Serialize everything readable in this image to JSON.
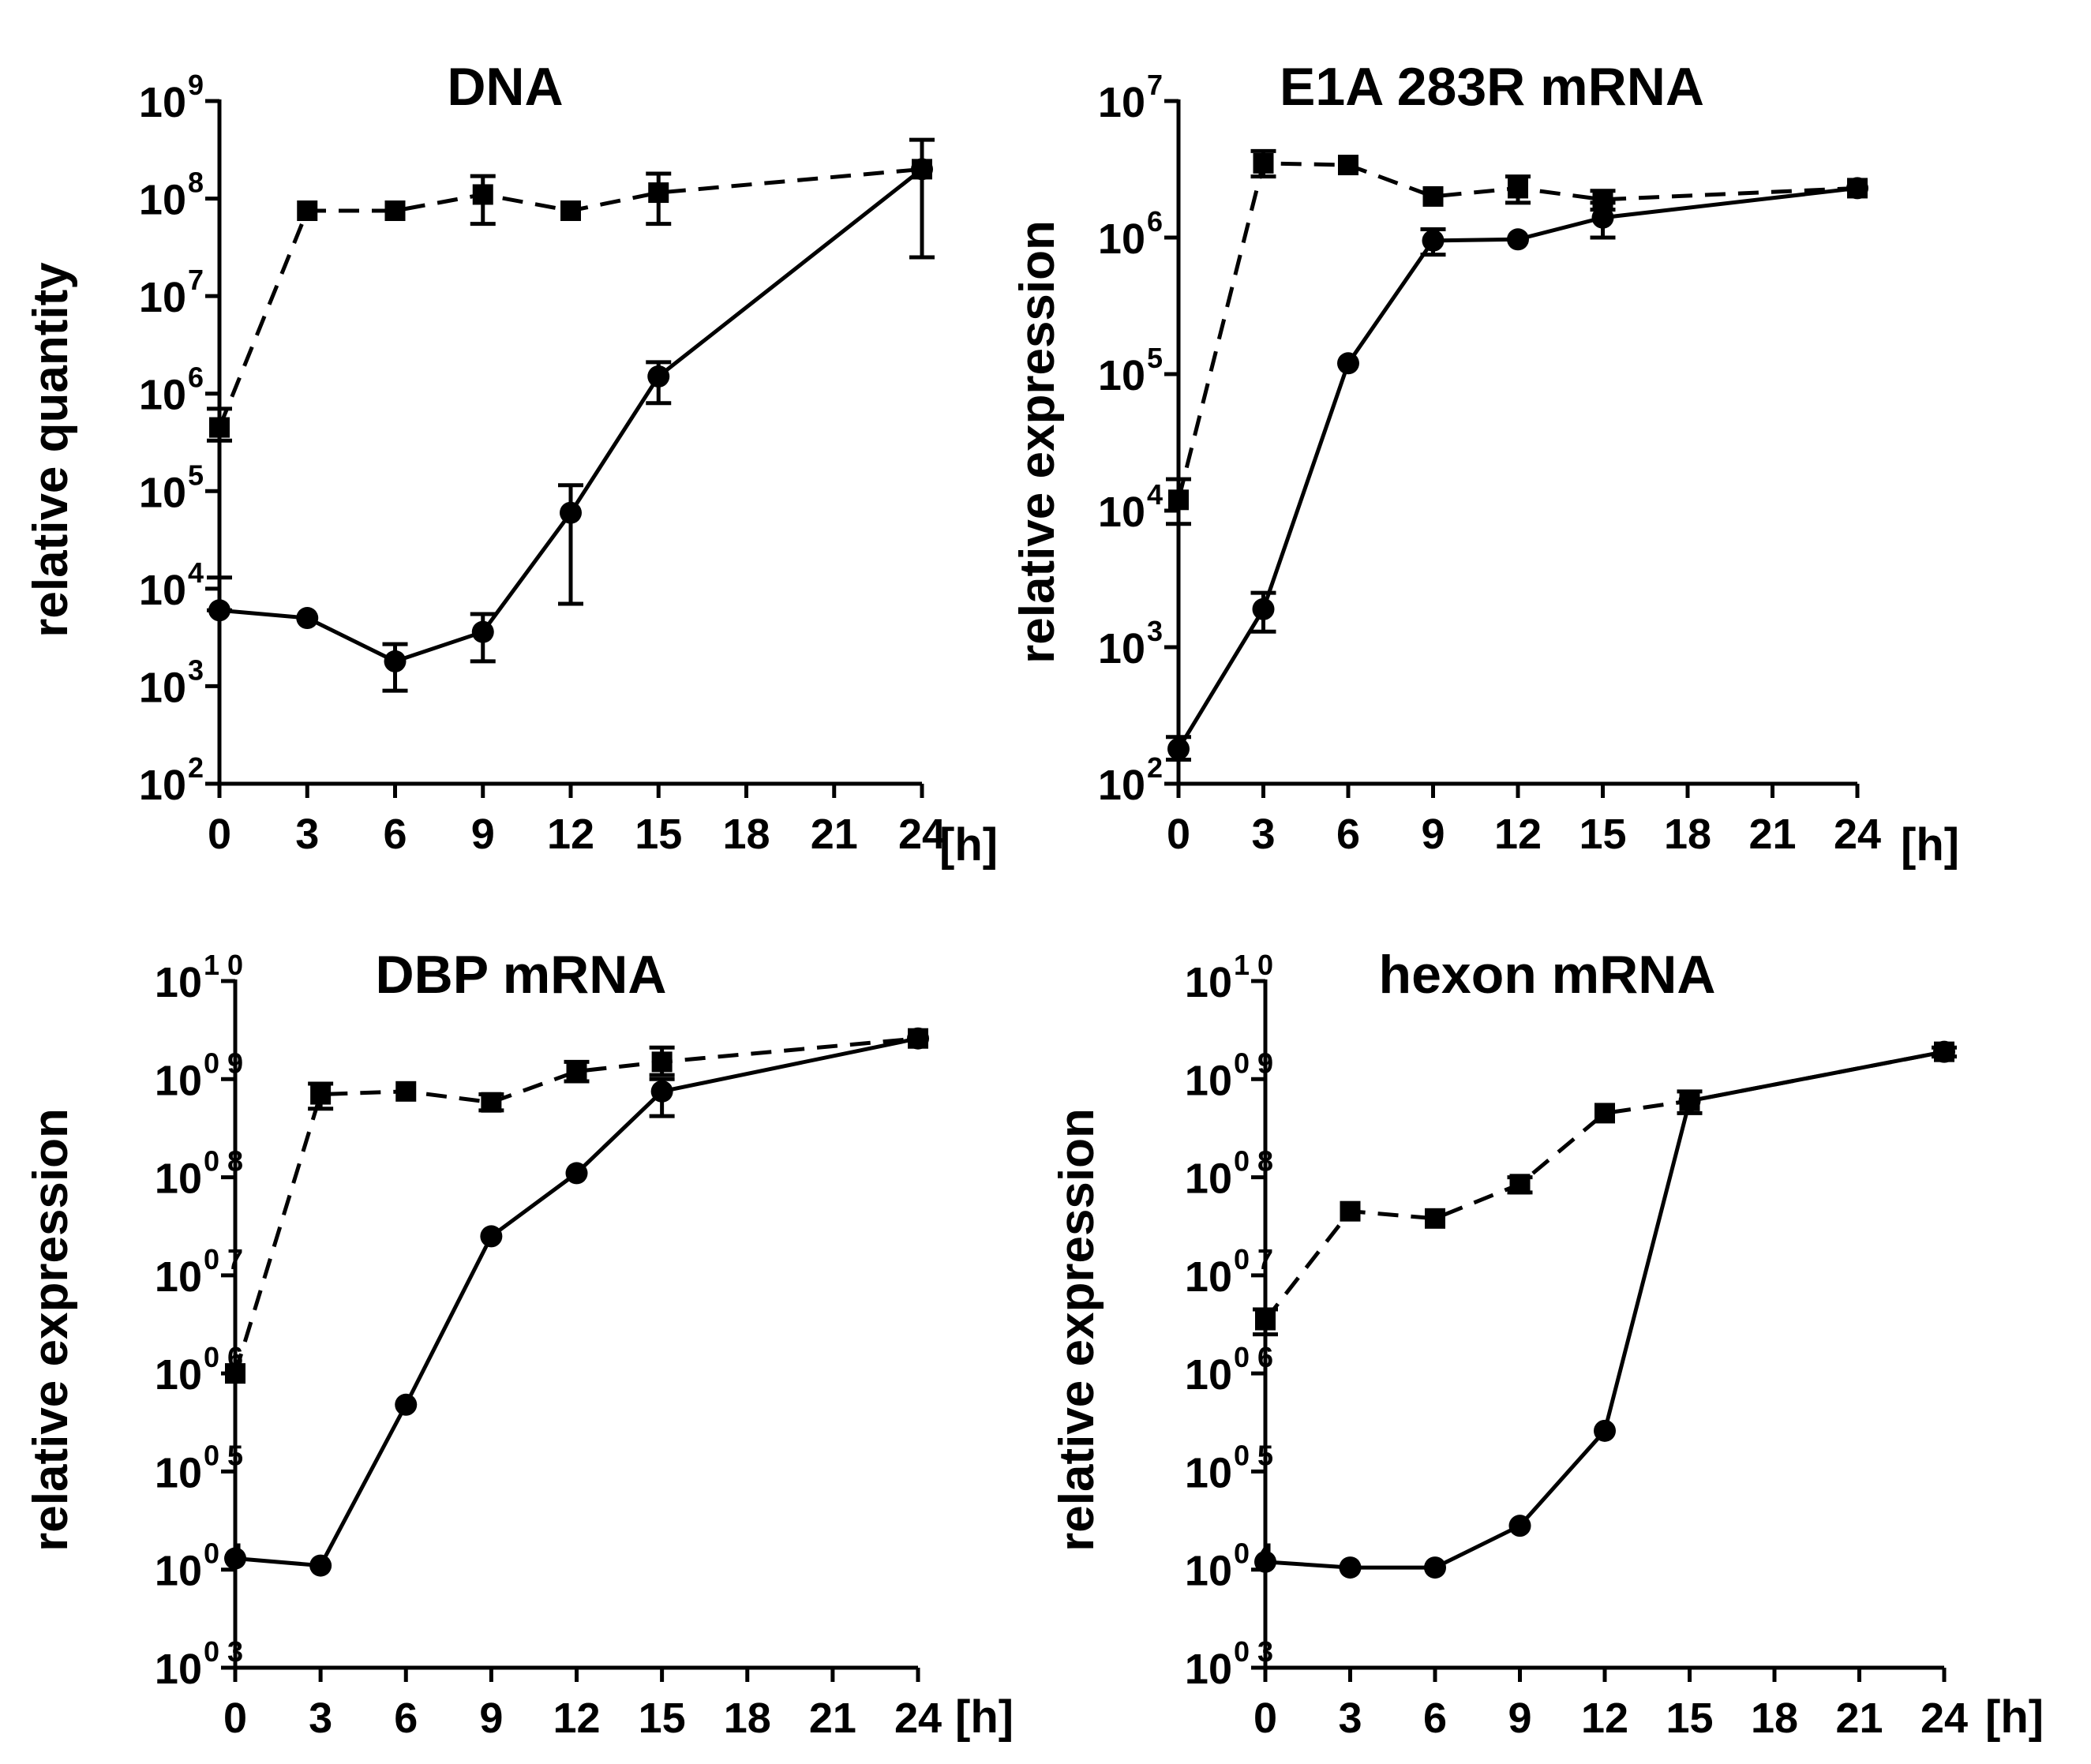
{
  "chart_data": [
    {
      "type": "line",
      "title": "DNA",
      "xlabel": "[h]",
      "ylabel": "relative quantity",
      "yscale": "log",
      "y_exponent_min": 2,
      "y_exponent_max": 9,
      "y_tick_base": "10",
      "y_tick_exponents": [
        "2",
        "3",
        "4",
        "5",
        "6",
        "7",
        "8",
        "9"
      ],
      "x_ticks": [
        "0",
        "3",
        "6",
        "9",
        "12",
        "15",
        "18",
        "21",
        "24"
      ],
      "xlim": [
        0,
        24
      ],
      "series": [
        {
          "name": "dashed-series",
          "style": "dashed",
          "marker": "square",
          "x": [
            0,
            3,
            6,
            9,
            12,
            15,
            24
          ],
          "y": [
            450000,
            75000000,
            75000000,
            110000000,
            75000000,
            115000000,
            200000000
          ],
          "err_low": [
            330000,
            75000000,
            75000000,
            55000000,
            75000000,
            55000000,
            25000000
          ],
          "err_high": [
            700000,
            75000000,
            75000000,
            170000000,
            75000000,
            180000000,
            400000000
          ]
        },
        {
          "name": "solid-series",
          "style": "solid",
          "marker": "circle",
          "x": [
            0,
            3,
            6,
            9,
            12,
            15,
            24
          ],
          "y": [
            6000,
            5000,
            1800,
            3600,
            60000,
            1500000,
            200000000
          ],
          "err_low": [
            6000,
            5000,
            900,
            1800,
            7000,
            800000,
            200000000
          ],
          "err_high": [
            13000,
            5000,
            2700,
            5500,
            115000,
            2100000,
            200000000
          ]
        }
      ]
    },
    {
      "type": "line",
      "title": "E1A 283R mRNA",
      "xlabel": "[h]",
      "ylabel": "relative expression",
      "yscale": "log",
      "y_exponent_min": 2,
      "y_exponent_max": 7,
      "y_tick_base": "10",
      "y_tick_exponents": [
        "2",
        "3",
        "4",
        "5",
        "6",
        "7"
      ],
      "x_ticks": [
        "0",
        "3",
        "6",
        "9",
        "12",
        "15",
        "18",
        "21",
        "24"
      ],
      "xlim": [
        0,
        24
      ],
      "series": [
        {
          "name": "dashed-series",
          "style": "dashed",
          "marker": "square",
          "x": [
            0,
            3,
            6,
            9,
            12,
            15,
            24
          ],
          "y": [
            12000,
            3500000,
            3400000,
            2000000,
            2300000,
            1900000,
            2300000
          ],
          "err_low": [
            8000,
            2800000,
            3400000,
            2000000,
            1800000,
            1600000,
            2300000
          ],
          "err_high": [
            17000,
            4300000,
            3400000,
            2000000,
            2800000,
            2200000,
            2300000
          ]
        },
        {
          "name": "solid-series",
          "style": "solid",
          "marker": "circle",
          "x": [
            0,
            3,
            6,
            9,
            12,
            15,
            24
          ],
          "y": [
            180,
            1900,
            120000,
            950000,
            970000,
            1400000,
            2300000
          ],
          "err_low": [
            150,
            1300,
            120000,
            750000,
            970000,
            1000000,
            2300000
          ],
          "err_high": [
            220,
            2500,
            120000,
            1150000,
            970000,
            1800000,
            2300000
          ]
        }
      ]
    },
    {
      "type": "line",
      "title": "DBP mRNA",
      "xlabel": "[h]",
      "ylabel": "relative expression",
      "yscale": "log",
      "y_exponent_min": 3,
      "y_exponent_max": 10,
      "y_tick_base": "10",
      "y_tick_exponents": [
        "0 3",
        "0 4",
        "0 5",
        "0 6",
        "0 7",
        "0 8",
        "0 9",
        "1 0"
      ],
      "x_ticks": [
        "0",
        "3",
        "6",
        "9",
        "12",
        "15",
        "18",
        "21",
        "24"
      ],
      "xlim": [
        0,
        24
      ],
      "series": [
        {
          "name": "dashed-series",
          "style": "dashed",
          "marker": "square",
          "x": [
            0,
            3,
            6,
            9,
            12,
            15,
            24
          ],
          "y": [
            1000000,
            700000000,
            750000000,
            580000000,
            1200000000,
            1500000000,
            2600000000
          ],
          "err_low": [
            1000000,
            500000000,
            750000000,
            480000000,
            950000000,
            1100000000,
            2600000000
          ],
          "err_high": [
            1000000,
            900000000,
            750000000,
            700000000,
            1500000000,
            2100000000,
            2600000000
          ]
        },
        {
          "name": "solid-series",
          "style": "solid",
          "marker": "circle",
          "x": [
            0,
            3,
            6,
            9,
            12,
            15,
            24
          ],
          "y": [
            13000,
            11000,
            480000,
            25000000,
            110000000,
            750000000,
            2600000000
          ],
          "err_low": [
            13000,
            11000,
            480000,
            25000000,
            110000000,
            420000000,
            2600000000
          ],
          "err_high": [
            13000,
            11000,
            480000,
            25000000,
            110000000,
            1000000000,
            2600000000
          ]
        }
      ]
    },
    {
      "type": "line",
      "title": "hexon mRNA",
      "xlabel": "[h]",
      "ylabel": "relative expression",
      "yscale": "log",
      "y_exponent_min": 3,
      "y_exponent_max": 10,
      "y_tick_base": "10",
      "y_tick_exponents": [
        "0 3",
        "0 4",
        "0 5",
        "0 6",
        "0 7",
        "0 8",
        "0 9",
        "1 0"
      ],
      "x_ticks": [
        "0",
        "3",
        "6",
        "9",
        "12",
        "15",
        "18",
        "21",
        "24"
      ],
      "xlim": [
        0,
        24
      ],
      "series": [
        {
          "name": "dashed-series",
          "style": "dashed",
          "marker": "square",
          "x": [
            0,
            3,
            6,
            9,
            12,
            15,
            24
          ],
          "y": [
            3500000,
            45000000,
            38000000,
            85000000,
            450000000,
            600000000,
            1900000000
          ],
          "err_low": [
            2500000,
            45000000,
            38000000,
            70000000,
            450000000,
            450000000,
            1700000000
          ],
          "err_high": [
            4500000,
            45000000,
            38000000,
            100000000,
            450000000,
            750000000,
            2100000000
          ]
        },
        {
          "name": "solid-series",
          "style": "solid",
          "marker": "circle",
          "x": [
            0,
            3,
            6,
            9,
            12,
            15,
            24
          ],
          "y": [
            12000,
            10500,
            10500,
            28000,
            260000,
            600000000,
            1900000000
          ],
          "err_low": [
            12000,
            10500,
            10500,
            28000,
            260000,
            600000000,
            1900000000
          ],
          "err_high": [
            12000,
            10500,
            10500,
            28000,
            260000,
            600000000,
            1900000000
          ]
        }
      ]
    }
  ]
}
